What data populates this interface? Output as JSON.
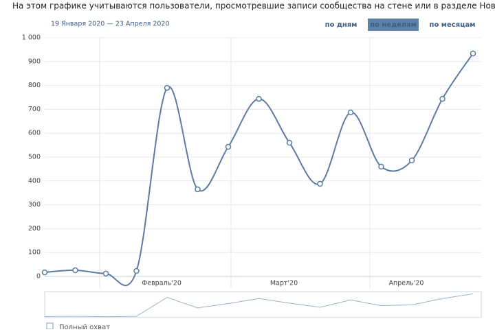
{
  "header": {
    "note": "На этом графике учитываются пользователи, просмотревшие записи сообщества на стене или в разделе Новости",
    "date_range": "19 Января 2020 — 23 Апреля 2020",
    "tabs": [
      "по дням",
      "по неделям",
      "по месяцам"
    ],
    "active_tab": 1
  },
  "chart_data": {
    "type": "line",
    "categories": [
      null,
      null,
      null,
      null,
      "Февраль'20",
      null,
      null,
      null,
      "Март'20",
      null,
      null,
      null,
      "Апрель'20",
      null,
      null
    ],
    "values": [
      17,
      26,
      12,
      23,
      790,
      365,
      543,
      744,
      560,
      388,
      687,
      460,
      486,
      744,
      934
    ],
    "color": "#5b7ba3",
    "ylim": [
      0,
      1000
    ],
    "yticks": [
      0,
      100,
      200,
      300,
      400,
      500,
      600,
      700,
      800,
      900,
      {
        "value": 1000,
        "label": "1 000"
      }
    ],
    "grid": true
  },
  "footer": {
    "checkbox": "Полный охват"
  }
}
